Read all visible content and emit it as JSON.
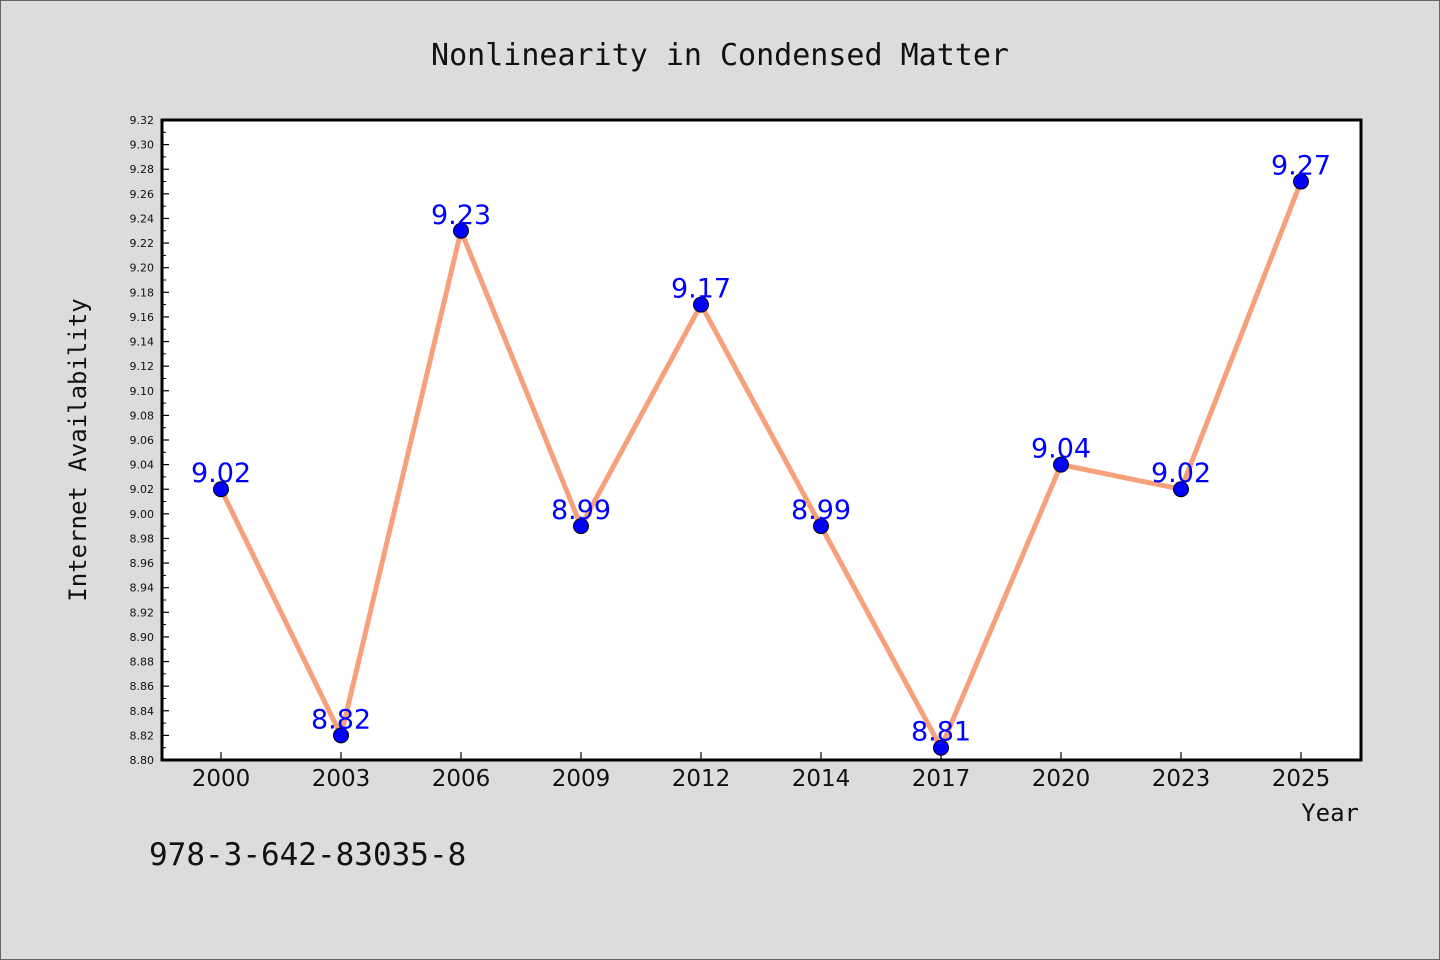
{
  "chart_data": {
    "type": "line",
    "title": "Nonlinearity in Condensed Matter",
    "xlabel": "Year",
    "ylabel": "Internet Availability",
    "categories": [
      "2000",
      "2003",
      "2006",
      "2009",
      "2012",
      "2014",
      "2017",
      "2020",
      "2023",
      "2025"
    ],
    "series": [
      {
        "values": [
          9.02,
          8.82,
          9.23,
          8.99,
          9.17,
          8.99,
          8.81,
          9.04,
          9.02,
          9.27
        ],
        "data_labels": [
          "9.02",
          "8.82",
          "9.23",
          "8.99",
          "9.17",
          "8.99",
          "8.81",
          "9.04",
          "9.02",
          "9.27"
        ],
        "line_color": "#f7a07c",
        "marker_color": "#0000ff"
      }
    ],
    "ylim": [
      8.8,
      9.32
    ],
    "yticks": [
      "8.80",
      "8.82",
      "8.84",
      "8.86",
      "8.88",
      "8.90",
      "8.92",
      "8.94",
      "8.96",
      "8.98",
      "9.00",
      "9.02",
      "9.04",
      "9.06",
      "9.08",
      "9.10",
      "9.12",
      "9.14",
      "9.16",
      "9.18",
      "9.20",
      "9.22",
      "9.24",
      "9.26",
      "9.28",
      "9.30",
      "9.32"
    ],
    "grid": false,
    "legend": "none",
    "annotation": "978-3-642-83035-8",
    "background_color": "#dcdcdc",
    "plot_background_color": "#ffffff"
  }
}
